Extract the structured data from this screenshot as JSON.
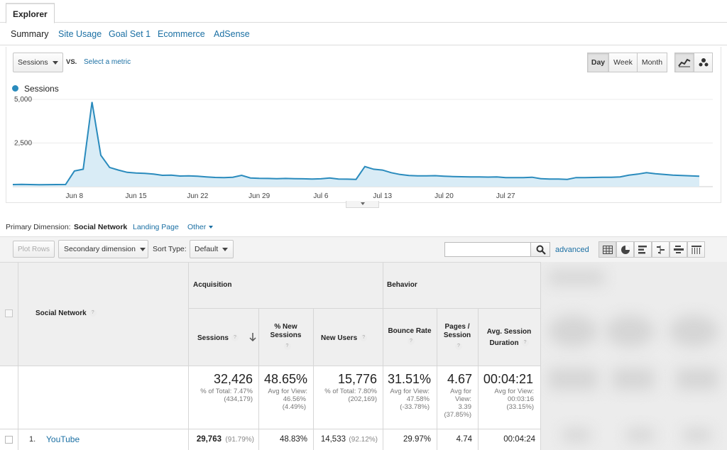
{
  "explorer_tab": "Explorer",
  "subtabs": [
    "Summary",
    "Site Usage",
    "Goal Set 1",
    "Ecommerce",
    "AdSense"
  ],
  "metric_select": "Sessions",
  "vs_label": "VS.",
  "select_metric_link": "Select a metric",
  "period_buttons": [
    "Day",
    "Week",
    "Month"
  ],
  "period_active": "Day",
  "accent_color": "#2a8bbd",
  "chart_data": {
    "type": "area",
    "series": [
      {
        "name": "Sessions",
        "values": [
          120,
          130,
          120,
          115,
          118,
          120,
          125,
          900,
          1000,
          4850,
          1800,
          1100,
          950,
          820,
          780,
          760,
          720,
          650,
          660,
          610,
          620,
          600,
          560,
          530,
          520,
          540,
          650,
          500,
          480,
          470,
          460,
          470,
          460,
          450,
          440,
          450,
          500,
          440,
          430,
          420,
          1150,
          1000,
          950,
          800,
          700,
          640,
          620,
          620,
          630,
          600,
          580,
          570,
          560,
          560,
          550,
          560,
          520,
          520,
          520,
          540,
          460,
          440,
          440,
          420,
          520,
          520,
          530,
          540,
          540,
          560,
          660,
          720,
          800,
          740,
          700,
          660,
          640,
          620,
          600
        ]
      }
    ],
    "x_ticks": [
      "Jun 8",
      "Jun 15",
      "Jun 22",
      "Jun 29",
      "Jul 6",
      "Jul 13",
      "Jul 20",
      "Jul 27"
    ],
    "y_ticks": [
      "2,500",
      "5,000"
    ],
    "ylim": [
      0,
      5000
    ],
    "grid": true,
    "legend": "top-left"
  },
  "primary_dimension": {
    "label": "Primary Dimension:",
    "active": "Social Network",
    "options": [
      "Landing Page",
      "Other"
    ]
  },
  "toolbar": {
    "plot_rows": "Plot Rows",
    "secondary_dimension": "Secondary dimension",
    "sort_type_label": "Sort Type:",
    "sort_type_value": "Default",
    "advanced": "advanced",
    "search_placeholder": ""
  },
  "table": {
    "dimension_header": "Social Network",
    "group_acquisition": "Acquisition",
    "group_behavior": "Behavior",
    "col_sessions": "Sessions",
    "col_new_sessions": "% New Sessions",
    "col_new_users": "New Users",
    "col_bounce": "Bounce Rate",
    "col_pages": "Pages / Session",
    "col_duration": "Avg. Session Duration",
    "totals": {
      "sessions": "32,426",
      "sessions_sub1": "% of Total: 7.47%",
      "sessions_sub2": "(434,179)",
      "new_sessions": "48.65%",
      "new_sessions_sub1": "Avg for View:",
      "new_sessions_sub2": "46.56%",
      "new_sessions_sub3": "(4.49%)",
      "new_users": "15,776",
      "new_users_sub1": "% of Total: 7.80%",
      "new_users_sub2": "(202,169)",
      "bounce": "31.51%",
      "bounce_sub1": "Avg for View:",
      "bounce_sub2": "47.58%",
      "bounce_sub3": "(-33.78%)",
      "pages": "4.67",
      "pages_sub1": "Avg for",
      "pages_sub2": "View:",
      "pages_sub3": "3.39",
      "pages_sub4": "(37.85%)",
      "duration": "00:04:21",
      "duration_sub1": "Avg for View:",
      "duration_sub2": "00:03:16",
      "duration_sub3": "(33.15%)"
    },
    "rows": [
      {
        "index": "1.",
        "name": "YouTube",
        "sessions": "29,763",
        "sessions_pct": "(91.79%)",
        "new_sessions": "48.83%",
        "new_users": "14,533",
        "new_users_pct": "(92.12%)",
        "bounce": "29.97%",
        "pages": "4.74",
        "duration": "00:04:24"
      }
    ]
  }
}
